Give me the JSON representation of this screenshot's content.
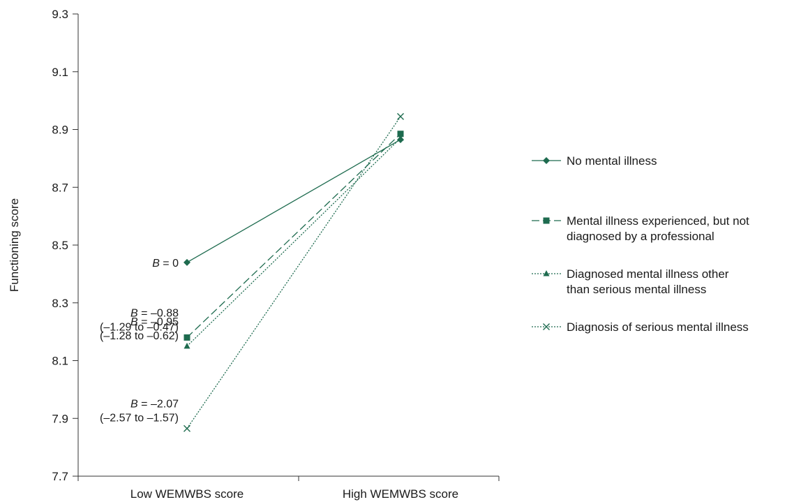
{
  "chart_data": {
    "type": "line",
    "ylabel": "Functioning score",
    "xlabel": "",
    "categories": [
      "Low WEMWBS score",
      "High WEMWBS score"
    ],
    "ylim": [
      7.7,
      9.3
    ],
    "yticks": [
      "7.7",
      "7.9",
      "8.1",
      "8.3",
      "8.5",
      "8.7",
      "8.9",
      "9.1",
      "9.3"
    ],
    "grid": false,
    "legend_position": "right",
    "line_color": "#1e6b4f",
    "series": [
      {
        "name": "No mental illness",
        "values": [
          8.44,
          8.865
        ],
        "marker": "diamond",
        "dash": "solid"
      },
      {
        "name_lines": [
          "Mental illness experienced, but not",
          "diagnosed by a professional"
        ],
        "values": [
          8.18,
          8.885
        ],
        "marker": "square",
        "dash": "dashed"
      },
      {
        "name_lines": [
          "Diagnosed mental illness other",
          "than serious mental illness"
        ],
        "values": [
          8.15,
          8.87
        ],
        "marker": "triangle",
        "dash": "dotted"
      },
      {
        "name": "Diagnosis of serious mental illness",
        "values": [
          7.865,
          8.945
        ],
        "marker": "x",
        "dash": "dotted"
      }
    ],
    "annotations": [
      {
        "series": 0,
        "lines": [
          {
            "b": "B",
            "rest": " = 0"
          }
        ]
      },
      {
        "series": 1,
        "lines": [
          {
            "b": "B",
            "rest": " = –0.88"
          },
          {
            "b": "",
            "rest": "(–1.29 to –0.47)"
          }
        ]
      },
      {
        "series": 2,
        "lines": [
          {
            "b": "B",
            "rest": " = –0.95"
          },
          {
            "b": "",
            "rest": "(–1.28 to –0.62)"
          }
        ]
      },
      {
        "series": 3,
        "lines": [
          {
            "b": "B",
            "rest": " = –2.07"
          },
          {
            "b": "",
            "rest": "(–2.57 to –1.57)"
          }
        ]
      }
    ]
  }
}
